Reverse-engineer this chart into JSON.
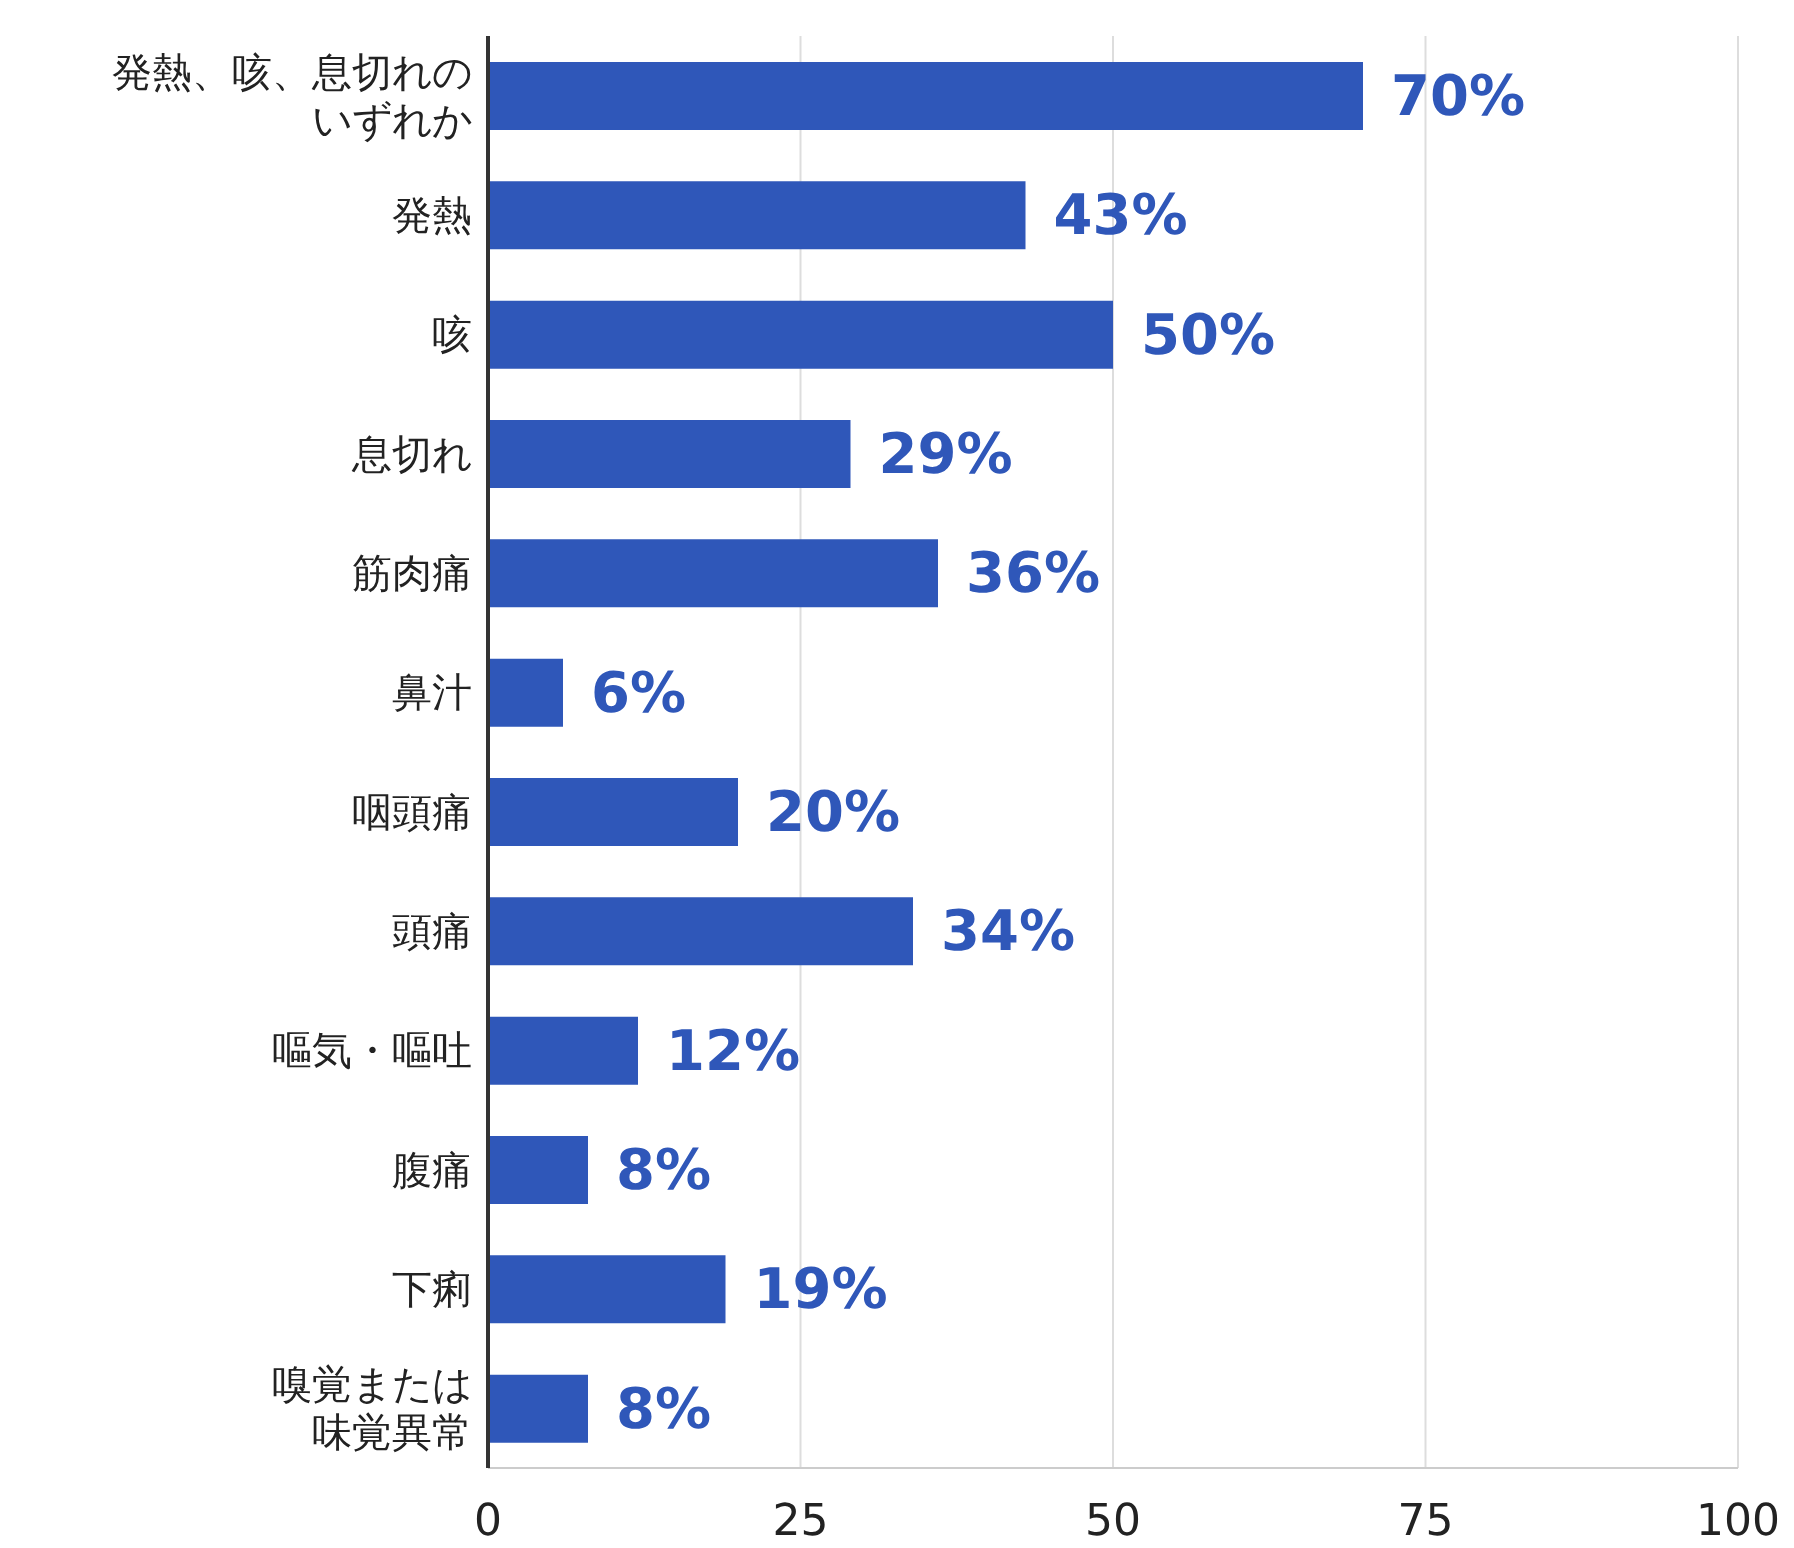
{
  "chart_data": {
    "type": "bar",
    "orientation": "horizontal",
    "categories": [
      "発熱、咳、息切れのいずれか",
      "発熱",
      "咳",
      "息切れ",
      "筋肉痛",
      "鼻汁",
      "咽頭痛",
      "頭痛",
      "嘔気・嘔吐",
      "腹痛",
      "下痢",
      "嗅覚または味覚異常"
    ],
    "values": [
      70,
      43,
      50,
      29,
      36,
      6,
      20,
      34,
      12,
      8,
      19,
      8
    ],
    "value_labels": [
      "70%",
      "43%",
      "50%",
      "29%",
      "36%",
      "6%",
      "20%",
      "34%",
      "12%",
      "8%",
      "19%",
      "8%"
    ],
    "color": "#2f57b9",
    "xlim": [
      0,
      100
    ],
    "xticks": [
      0,
      25,
      50,
      75,
      100
    ],
    "grid": "x"
  }
}
